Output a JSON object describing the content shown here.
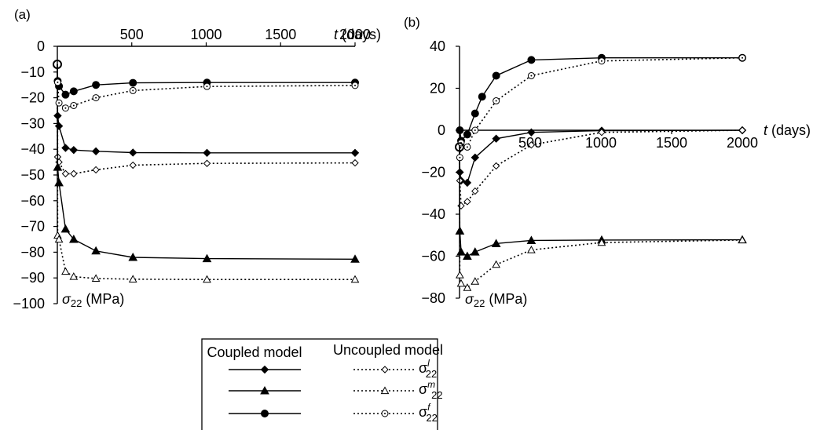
{
  "figure": {
    "units_note": "time t in days, stress sigma_22 in MPa"
  },
  "legend": {
    "coupled_header": "Coupled model",
    "uncoupled_header": "Uncoupled model",
    "rows": [
      {
        "symbol": "diamond",
        "label_base": "σ",
        "label_sup": "l",
        "label_sub": "22"
      },
      {
        "symbol": "triangle",
        "label_base": "σ",
        "label_sup": "m",
        "label_sub": "22"
      },
      {
        "symbol": "circle",
        "label_base": "σ",
        "label_sup": "f",
        "label_sub": "22"
      }
    ]
  },
  "chart_data": [
    {
      "panel_label": "(a)",
      "type": "line",
      "xlabel_var": "t",
      "xlabel_unit": " (days)",
      "ylabel_var": "σ",
      "ylabel_sub": "22",
      "ylabel_unit": " (MPa)",
      "xlim": [
        0,
        2000
      ],
      "ylim": [
        -100,
        0
      ],
      "xticks": [
        500,
        1000,
        1500,
        2000
      ],
      "yticks": [
        0,
        -10,
        -20,
        -30,
        -40,
        -50,
        -60,
        -70,
        -80,
        -90,
        -100
      ],
      "grid": false,
      "series": [
        {
          "model": "coupled",
          "component": "l",
          "marker": "diamond",
          "style": "solid",
          "x": [
            0,
            2,
            10,
            50,
            100,
            250,
            500,
            1000,
            2000
          ],
          "y": [
            -7,
            -27,
            -31,
            -39.5,
            -40.3,
            -40.8,
            -41.3,
            -41.4,
            -41.4
          ]
        },
        {
          "model": "uncoupled",
          "component": "l",
          "marker": "diamond",
          "style": "dotted",
          "x": [
            0,
            2,
            10,
            50,
            100,
            250,
            500,
            1000,
            2000
          ],
          "y": [
            -7,
            -43,
            -45,
            -49.5,
            -49.5,
            -48,
            -46.2,
            -45.5,
            -45.3
          ]
        },
        {
          "model": "coupled",
          "component": "m",
          "marker": "triangle",
          "style": "solid",
          "x": [
            0,
            2,
            10,
            50,
            100,
            250,
            500,
            1000,
            2000
          ],
          "y": [
            -7,
            -47,
            -53,
            -71,
            -75,
            -79.5,
            -82,
            -82.5,
            -82.7
          ]
        },
        {
          "model": "uncoupled",
          "component": "m",
          "marker": "triangle",
          "style": "dotted",
          "x": [
            0,
            2,
            10,
            50,
            100,
            250,
            500,
            1000,
            2000
          ],
          "y": [
            -7,
            -73.5,
            -75,
            -87.5,
            -89.5,
            -90.2,
            -90.5,
            -90.6,
            -90.6
          ]
        },
        {
          "model": "coupled",
          "component": "f",
          "marker": "circle",
          "style": "solid",
          "x": [
            0,
            2,
            10,
            50,
            100,
            250,
            500,
            1000,
            2000
          ],
          "y": [
            -7,
            -13.5,
            -15.5,
            -18.8,
            -17.5,
            -15,
            -14.2,
            -14.1,
            -14.1
          ]
        },
        {
          "model": "uncoupled",
          "component": "f",
          "marker": "circle",
          "style": "dotted",
          "x": [
            0,
            2,
            10,
            50,
            100,
            250,
            500,
            1000,
            2000
          ],
          "y": [
            -7,
            -14,
            -22,
            -24,
            -23,
            -20,
            -17.2,
            -15.6,
            -15.2
          ]
        }
      ]
    },
    {
      "panel_label": "(b)",
      "type": "line",
      "xlabel_var": "t",
      "xlabel_unit": " (days)",
      "ylabel_var": "σ",
      "ylabel_sub": "22",
      "ylabel_unit": " (MPa)",
      "xlim": [
        0,
        2000
      ],
      "ylim": [
        -80,
        40
      ],
      "xticks": [
        500,
        1000,
        1500,
        2000
      ],
      "yticks": [
        40,
        20,
        0,
        -20,
        -40,
        -60,
        -80
      ],
      "grid": false,
      "series": [
        {
          "model": "coupled",
          "component": "l",
          "marker": "diamond",
          "style": "solid",
          "x": [
            0,
            2,
            10,
            50,
            100,
            250,
            500,
            1000,
            2000
          ],
          "y": [
            -8,
            -20,
            -24,
            -25,
            -13,
            -4,
            -1,
            -0.2,
            0
          ]
        },
        {
          "model": "uncoupled",
          "component": "l",
          "marker": "diamond",
          "style": "dotted",
          "x": [
            0,
            2,
            10,
            50,
            100,
            250,
            500,
            1000,
            2000
          ],
          "y": [
            -8,
            -24,
            -36,
            -34,
            -29,
            -17,
            -7,
            -1,
            0
          ]
        },
        {
          "model": "coupled",
          "component": "m",
          "marker": "triangle",
          "style": "solid",
          "x": [
            0,
            2,
            10,
            50,
            100,
            250,
            500,
            1000,
            2000
          ],
          "y": [
            -8,
            -48,
            -58,
            -60,
            -58,
            -54,
            -52.5,
            -52.3,
            -52.2
          ]
        },
        {
          "model": "uncoupled",
          "component": "m",
          "marker": "triangle",
          "style": "dotted",
          "x": [
            0,
            2,
            10,
            50,
            100,
            250,
            500,
            1000,
            2000
          ],
          "y": [
            -8,
            -69,
            -73,
            -75,
            -72,
            -64,
            -57,
            -53.5,
            -52.3
          ]
        },
        {
          "model": "coupled",
          "component": "f",
          "marker": "circle",
          "style": "solid",
          "x": [
            0,
            2,
            10,
            50,
            100,
            150,
            250,
            500,
            1000,
            2000
          ],
          "y": [
            -8,
            0,
            -5,
            -2,
            8,
            16,
            26,
            33.5,
            34.5,
            34.5
          ]
        },
        {
          "model": "uncoupled",
          "component": "f",
          "marker": "circle",
          "style": "dotted",
          "x": [
            0,
            2,
            10,
            50,
            100,
            250,
            500,
            1000,
            2000
          ],
          "y": [
            -8,
            -13,
            -6,
            -8,
            0,
            14,
            26,
            33,
            34.5
          ]
        }
      ]
    }
  ]
}
